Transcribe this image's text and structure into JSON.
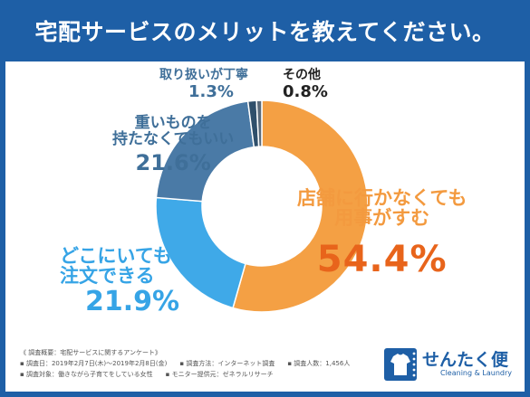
{
  "header": {
    "title": "宅配サービスのメリットを教えてください。"
  },
  "chart_data": {
    "type": "pie",
    "donut": true,
    "title": "宅配サービスのメリットを教えてください。",
    "slices": [
      {
        "label": "店舗に行かなくても用事がすむ",
        "label_line1": "店舗に行かなくても",
        "label_line2": "用事がすむ",
        "value": 54.4,
        "value_label": "54.4%",
        "color": "#f4a044"
      },
      {
        "label": "どこにいても注文できる",
        "label_line1": "どこにいても",
        "label_line2": "注文できる",
        "value": 21.9,
        "value_label": "21.9%",
        "color": "#3fa9e8"
      },
      {
        "label": "重いものを持たなくてもいい",
        "label_line1": "重いものを",
        "label_line2": "持たなくてもいい",
        "value": 21.6,
        "value_label": "21.6%",
        "color": "#4a7aa6"
      },
      {
        "label": "取り扱いが丁寧",
        "value": 1.3,
        "value_label": "1.3%",
        "color": "#2f4f6b"
      },
      {
        "label": "その他",
        "value": 0.8,
        "value_label": "0.8%",
        "color": "#5a6a7a"
      }
    ]
  },
  "footnote": {
    "heading": "《 調査概要：宅配サービスに関するアンケート》",
    "date": "▪ 調査日：2019年2月7日(木)～2019年2月8日(金)",
    "method": "▪ 調査方法：インターネット調査",
    "count": "▪ 調査人数：1,456人",
    "target": "▪ 調査対象：働きながら子育てをしている女性",
    "monitor": "▪ モニター提供元：ゼネラルリサーチ"
  },
  "logo": {
    "name": "せんたく便",
    "sub": "Cleaning & Laundry"
  }
}
